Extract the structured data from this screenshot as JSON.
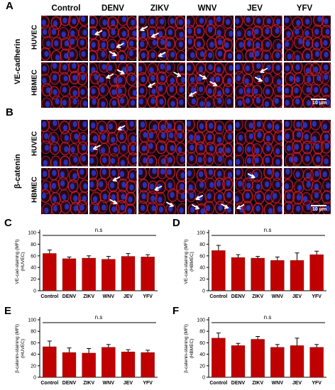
{
  "panels": {
    "A": "A",
    "B": "B",
    "C": "C",
    "D": "D",
    "E": "E",
    "F": "F"
  },
  "columns": [
    "Control",
    "DENV",
    "ZIKV",
    "WNV",
    "JEV",
    "YFV"
  ],
  "micrographs": {
    "A": {
      "marker": "VE-cadherin",
      "rows": [
        "HUVEC",
        "HBMEC"
      ],
      "scale_label": "10 μm"
    },
    "B": {
      "marker": "β-catenin",
      "rows": [
        "HUVEC",
        "HBMEC"
      ],
      "scale_label": "10 μm"
    }
  },
  "colors": {
    "bar": "#c00000",
    "membrane": "#e0202a",
    "nucleus": "#2a34c8",
    "background": "#0a0410"
  },
  "chart_data": [
    {
      "panel": "C",
      "type": "bar",
      "categories": [
        "Control",
        "DENV",
        "ZIKV",
        "WNV",
        "JEV",
        "YFV"
      ],
      "values": [
        64,
        55,
        56,
        54,
        59,
        58
      ],
      "errors": [
        6,
        3,
        4,
        5,
        5,
        4
      ],
      "ylabel_lines": [
        "VE-cad-staining (MFI)",
        "(HUVEC)"
      ],
      "ylim": [
        0,
        100
      ],
      "yticks": [
        0,
        20,
        40,
        60,
        80,
        100
      ],
      "annotation": "n.s"
    },
    {
      "panel": "D",
      "type": "bar",
      "categories": [
        "Control",
        "DENV",
        "ZIKV",
        "WNV",
        "JEV",
        "YFV"
      ],
      "values": [
        69,
        57,
        56,
        52,
        52,
        62
      ],
      "errors": [
        9,
        5,
        3,
        6,
        13,
        6
      ],
      "ylabel_lines": [
        "VE-cad-staining (MFI)",
        "(HBMEC)"
      ],
      "ylim": [
        0,
        100
      ],
      "yticks": [
        0,
        20,
        40,
        60,
        80,
        100
      ],
      "annotation": "n.s"
    },
    {
      "panel": "E",
      "type": "bar",
      "categories": [
        "Control",
        "DENV",
        "ZIKV",
        "WNV",
        "JEV",
        "YFV"
      ],
      "values": [
        53,
        43,
        42,
        52,
        44,
        43
      ],
      "errors": [
        10,
        8,
        8,
        5,
        4,
        4
      ],
      "ylabel_lines": [
        "β-catenin-staining (MFI)",
        "(HUVEC)"
      ],
      "ylim": [
        0,
        100
      ],
      "yticks": [
        0,
        20,
        40,
        60,
        80,
        100
      ],
      "annotation": "n.s"
    },
    {
      "panel": "F",
      "type": "bar",
      "categories": [
        "Control",
        "DENV",
        "ZIKV",
        "WNV",
        "JEV",
        "YFV"
      ],
      "values": [
        68,
        55,
        66,
        52,
        55,
        52
      ],
      "errors": [
        9,
        4,
        5,
        5,
        13,
        5
      ],
      "ylabel_lines": [
        "β-catenin-staining (MFI)",
        "(HBMEC)"
      ],
      "ylim": [
        0,
        100
      ],
      "yticks": [
        0,
        20,
        40,
        60,
        80,
        100
      ],
      "annotation": "n.s"
    }
  ]
}
